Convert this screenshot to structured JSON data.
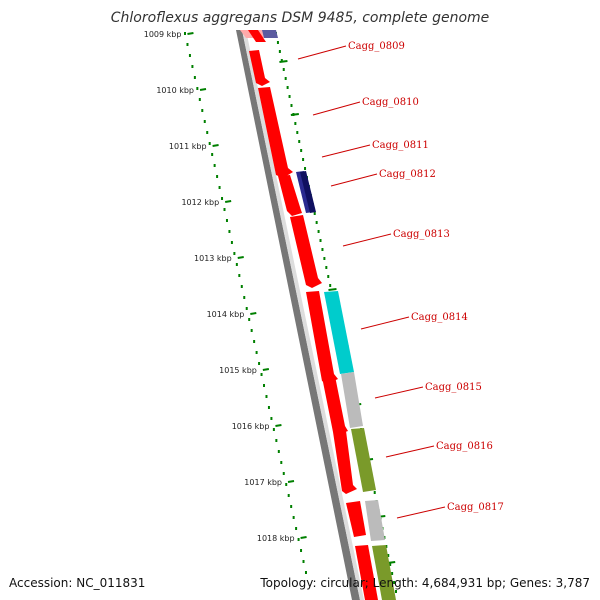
{
  "title": "Chloroflexus aggregans DSM 9485, complete genome",
  "footer": {
    "accession": "Accession: NC_011831",
    "topology": "Topology: circular; Length: 4,684,931 bp; Genes: 3,787"
  },
  "scale_labels": [
    "1009 kbp",
    "1010 kbp",
    "1011 kbp",
    "1012 kbp",
    "1013 kbp",
    "1014 kbp",
    "1015 kbp",
    "1016 kbp",
    "1017 kbp",
    "1018 kbp"
  ],
  "gene_labels": [
    "Cagg_0809",
    "Cagg_0810",
    "Cagg_0811",
    "Cagg_0812",
    "Cagg_0813",
    "Cagg_0814",
    "Cagg_0815",
    "Cagg_0816",
    "Cagg_0817"
  ],
  "colors": {
    "cds": "#ff0000",
    "navy": "#1a1a80",
    "cyan": "#00cccc",
    "grey": "#bbbbbb",
    "olive": "#6b8e23",
    "scale": "#008000",
    "label": "#cc0000",
    "backbone": "#888888"
  }
}
